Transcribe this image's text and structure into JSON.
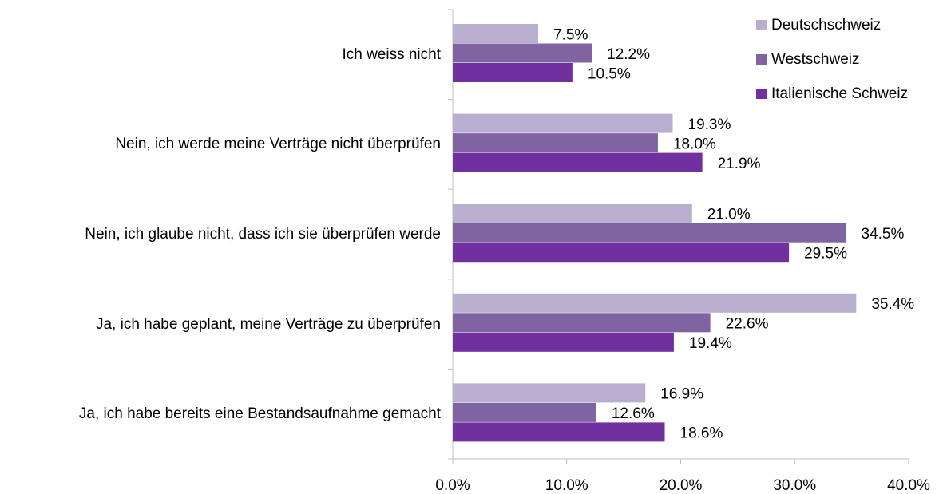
{
  "chart_data": {
    "type": "hbar",
    "categories": [
      "Ich weiss nicht",
      "Nein, ich werde meine Verträge nicht überprüfen",
      "Nein, ich glaube nicht, dass ich sie überprüfen werde",
      "Ja, ich habe geplant, meine Verträge zu überprüfen",
      "Ja, ich habe bereits eine Bestandsaufnahme gemacht"
    ],
    "series": [
      {
        "name": "Deutschschweiz",
        "color": "#b8aed0",
        "values": [
          7.5,
          19.3,
          21.0,
          35.4,
          16.9
        ],
        "value_labels": [
          "7.5%",
          "19.3%",
          "21.0%",
          "35.4%",
          "16.9%"
        ]
      },
      {
        "name": "Westschweiz",
        "color": "#8064a2",
        "values": [
          12.2,
          18.0,
          34.5,
          22.6,
          12.6
        ],
        "value_labels": [
          "12.2%",
          "18.0%",
          "34.5%",
          "22.6%",
          "12.6%"
        ]
      },
      {
        "name": "Italienische Schweiz",
        "color": "#7030a0",
        "values": [
          10.5,
          21.9,
          29.5,
          19.4,
          18.6
        ],
        "value_labels": [
          "10.5%",
          "21.9%",
          "29.5%",
          "19.4%",
          "18.6%"
        ]
      }
    ],
    "xlim": [
      0,
      40
    ],
    "xticks": [
      {
        "value": 0,
        "label": "0.0%"
      },
      {
        "value": 10,
        "label": "10.0%"
      },
      {
        "value": 20,
        "label": "20.0%"
      },
      {
        "value": 30,
        "label": "30.0%"
      },
      {
        "value": 40,
        "label": "40.0%"
      }
    ],
    "legend": "top-right",
    "grid": false
  }
}
